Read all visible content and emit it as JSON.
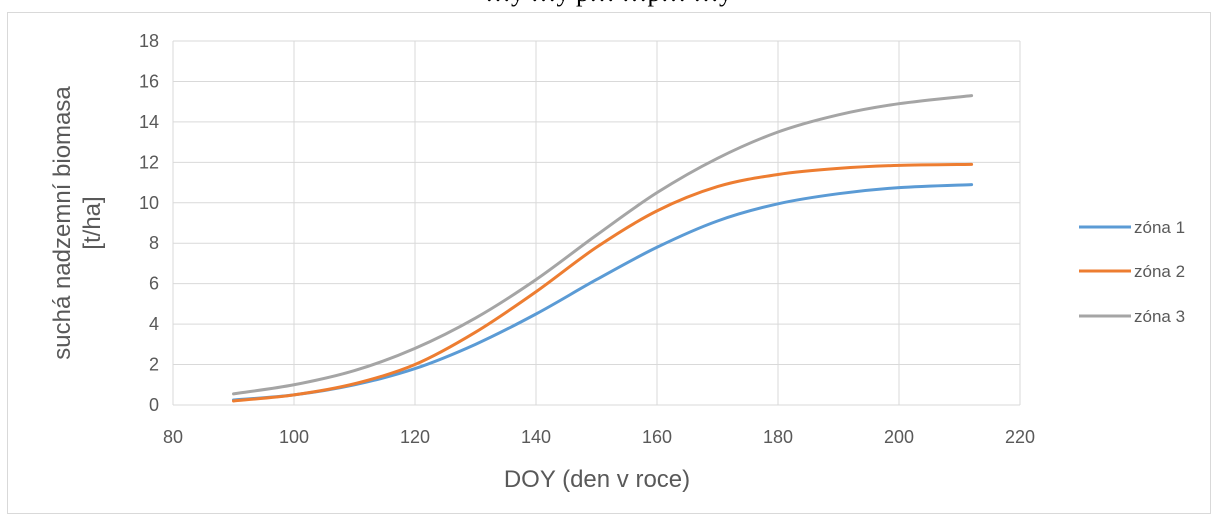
{
  "caption_fragment": "…y …y p… …p… …y",
  "chart_data": {
    "type": "line",
    "title": "",
    "xlabel": "DOY (den v roce)",
    "ylabel_line1": "suchá nadzemní biomasa",
    "ylabel_line2": "[t/ha]",
    "xlim": [
      80,
      220
    ],
    "ylim": [
      0,
      18
    ],
    "xticks": [
      80,
      100,
      120,
      140,
      160,
      180,
      200,
      220
    ],
    "yticks": [
      0,
      2,
      4,
      6,
      8,
      10,
      12,
      14,
      16,
      18
    ],
    "grid": true,
    "legend_position": "right",
    "x": [
      90,
      100,
      110,
      120,
      130,
      140,
      150,
      160,
      170,
      180,
      190,
      200,
      212
    ],
    "series": [
      {
        "name": "zóna 1",
        "color": "#5b9bd5",
        "values": [
          0.25,
          0.5,
          1.0,
          1.8,
          3.0,
          4.5,
          6.2,
          7.8,
          9.1,
          9.95,
          10.45,
          10.75,
          10.9
        ]
      },
      {
        "name": "zóna 2",
        "color": "#ed7d31",
        "values": [
          0.2,
          0.5,
          1.05,
          2.0,
          3.6,
          5.6,
          7.8,
          9.6,
          10.8,
          11.4,
          11.7,
          11.85,
          11.9
        ]
      },
      {
        "name": "zóna 3",
        "color": "#a5a5a5",
        "values": [
          0.55,
          1.0,
          1.7,
          2.8,
          4.3,
          6.2,
          8.4,
          10.5,
          12.2,
          13.5,
          14.35,
          14.9,
          15.3
        ]
      }
    ]
  }
}
